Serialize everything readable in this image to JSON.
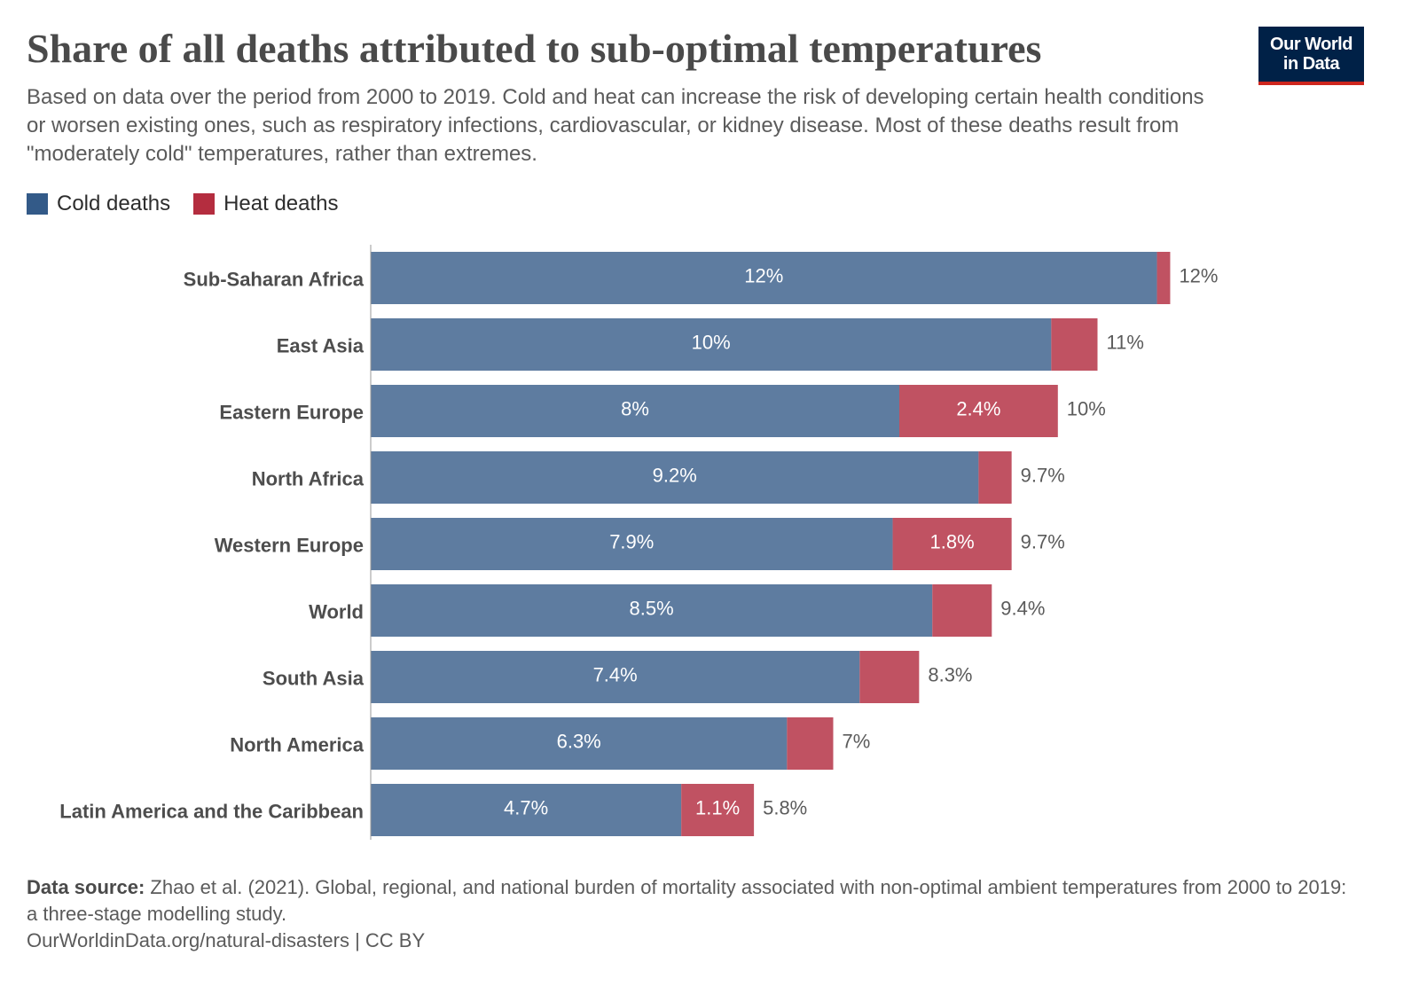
{
  "chart_data": {
    "type": "bar",
    "orientation": "horizontal",
    "stacked": true,
    "title": "Share of all deaths attributed to sub-optimal temperatures",
    "subtitle": "Based on data over the period from 2000 to 2019. Cold and heat can increase the risk of developing certain health conditions or worsen existing ones, such as respiratory infections, cardiovascular, or kidney disease. Most of these deaths result from \"moderately cold\" temperatures, rather than extremes.",
    "legend_placement": "top-left",
    "grid": false,
    "xlim": [
      0,
      12.1
    ],
    "categories": [
      "Sub-Saharan Africa",
      "East Asia",
      "Eastern Europe",
      "North Africa",
      "Western Europe",
      "World",
      "South Asia",
      "North America",
      "Latin America and the Caribbean"
    ],
    "series": [
      {
        "name": "Cold deaths",
        "color": "#5e7ca0",
        "legend_color": "#335a88",
        "values": [
          11.9,
          10.3,
          8.0,
          9.2,
          7.9,
          8.5,
          7.4,
          6.3,
          4.7
        ],
        "labels": [
          "12%",
          "10%",
          "8%",
          "9.2%",
          "7.9%",
          "8.5%",
          "7.4%",
          "6.3%",
          "4.7%"
        ]
      },
      {
        "name": "Heat deaths",
        "color": "#c05262",
        "legend_color": "#b42d3f",
        "values": [
          0.2,
          0.7,
          2.4,
          0.5,
          1.8,
          0.9,
          0.9,
          0.7,
          1.1
        ],
        "labels": [
          "",
          "",
          "2.4%",
          "",
          "1.8%",
          "",
          "",
          "",
          "1.1%"
        ]
      }
    ],
    "total_labels": [
      "12%",
      "11%",
      "10%",
      "9.7%",
      "9.7%",
      "9.4%",
      "8.3%",
      "7%",
      "5.8%"
    ]
  },
  "logo": {
    "line1": "Our World",
    "line2": "in Data"
  },
  "footer": {
    "source_label": "Data source:",
    "source_text": "Zhao et al. (2021). Global, regional, and national burden of mortality associated with non-optimal ambient temperatures from 2000 to 2019: a three-stage modelling study.",
    "url": "OurWorldinData.org/natural-disasters | CC BY"
  }
}
